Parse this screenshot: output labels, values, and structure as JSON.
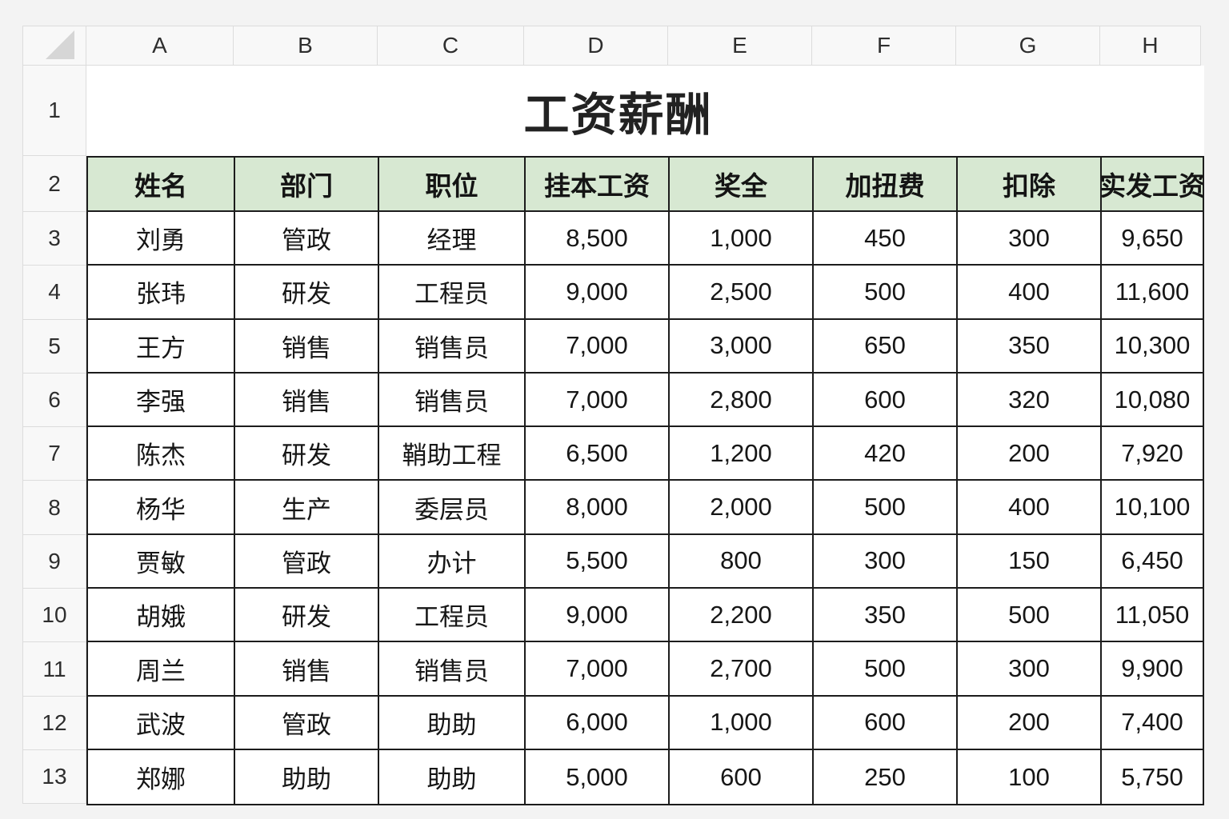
{
  "sheet": {
    "title": "工资薪酬",
    "column_letters": [
      "A",
      "B",
      "C",
      "D",
      "E",
      "F",
      "G",
      "H"
    ],
    "row_numbers": [
      "1",
      "2",
      "3",
      "4",
      "5",
      "6",
      "7",
      "8",
      "9",
      "10",
      "11",
      "12",
      "13"
    ],
    "table": {
      "headers": [
        "姓名",
        "部门",
        "职位",
        "挂本工资",
        "奖全",
        "加扭费",
        "扣除",
        "实发工资"
      ],
      "rows": [
        [
          "刘勇",
          "管政",
          "经理",
          "8,500",
          "1,000",
          "450",
          "300",
          "9,650"
        ],
        [
          "张玮",
          "研发",
          "工程员",
          "9,000",
          "2,500",
          "500",
          "400",
          "11,600"
        ],
        [
          "王方",
          "销售",
          "销售员",
          "7,000",
          "3,000",
          "650",
          "350",
          "10,300"
        ],
        [
          "李强",
          "销售",
          "销售员",
          "7,000",
          "2,800",
          "600",
          "320",
          "10,080"
        ],
        [
          "陈杰",
          "研发",
          "鞘助工程",
          "6,500",
          "1,200",
          "420",
          "200",
          "7,920"
        ],
        [
          "杨华",
          "生产",
          "委层员",
          "8,000",
          "2,000",
          "500",
          "400",
          "10,100"
        ],
        [
          "贾敏",
          "管政",
          "办计",
          "5,500",
          "800",
          "300",
          "150",
          "6,450"
        ],
        [
          "胡娥",
          "研发",
          "工程员",
          "9,000",
          "2,200",
          "350",
          "500",
          "11,050"
        ],
        [
          "周兰",
          "销售",
          "销售员",
          "7,000",
          "2,700",
          "500",
          "300",
          "9,900"
        ],
        [
          "武波",
          "管政",
          "助助",
          "6,000",
          "1,000",
          "600",
          "200",
          "7,400"
        ],
        [
          "郑娜",
          "助助",
          "助助",
          "5,000",
          "600",
          "250",
          "100",
          "5,750"
        ]
      ]
    },
    "colors": {
      "header_fill": "#d7e8d2",
      "table_border": "#1c1c1c",
      "frame_fill": "#f8f8f8",
      "frame_line": "#dcdcdc",
      "page_background": "#f3f3f3"
    }
  }
}
